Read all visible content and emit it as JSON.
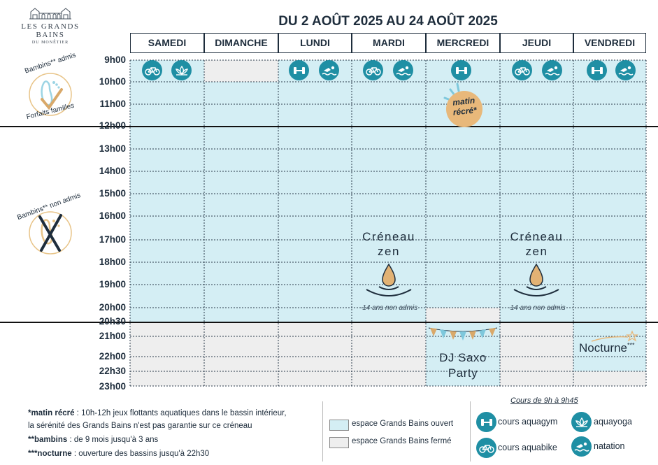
{
  "brand": {
    "name": "LES GRANDS BAINS",
    "subtitle": "DU MONÊTIER"
  },
  "title": "DU 2 AOÛT 2025 AU 24 AOÛT 2025",
  "days": [
    "SAMEDI",
    "DIMANCHE",
    "LUNDI",
    "MARDI",
    "MERCREDI",
    "JEUDI",
    "VENDREDI"
  ],
  "hours": [
    "9h00",
    "10h00",
    "11h00",
    "12h00",
    "13h00",
    "14h00",
    "15h00",
    "16h00",
    "17h00",
    "18h00",
    "19h00",
    "20h00",
    "20h30",
    "21h00",
    "22h00",
    "22h30",
    "23h00"
  ],
  "badges": {
    "top_arc": "Bambins** admis",
    "top_bottom_arc": "Forfaits familles",
    "bottom_arc": "Bambins** non admis"
  },
  "morning_icons": {
    "samedi": [
      "bike-icon",
      "lotus-icon"
    ],
    "lundi": [
      "dumbbell-icon",
      "swimmer-icon"
    ],
    "mardi": [
      "bike-icon",
      "swimmer-icon"
    ],
    "mercredi": [
      "dumbbell-icon"
    ],
    "jeudi": [
      "bike-icon",
      "swimmer-icon"
    ],
    "vendredi": [
      "dumbbell-icon",
      "swimmer-icon"
    ]
  },
  "matin_recre": {
    "line1": "matin",
    "line2": "récré*"
  },
  "creneau_zen": {
    "line1": "Créneau",
    "line2": "zen",
    "note": "-14 ans non admis"
  },
  "dj": {
    "line1": "DJ Saxo",
    "line2": "Party"
  },
  "nocturne": {
    "label": "Nocturne",
    "mark": "***"
  },
  "footnotes": [
    {
      "key": "*matin récré",
      "text": " : 10h-12h jeux flottants aquatiques dans le bassin intérieur,"
    },
    {
      "key": "",
      "text": "la sérénité des Grands Bains n'est pas garantie sur ce créneau"
    },
    {
      "key": "**bambins",
      "text": " : de 9 mois jusqu'à 3 ans"
    },
    {
      "key": "***nocturne",
      "text": " : ouverture des bassins jusqu'à 22h30"
    }
  ],
  "legend": {
    "open": "espace Grands Bains ouvert",
    "closed": "espace Grands Bains fermé",
    "courses_title": "Cours de 9h à 9h45",
    "aquagym": "cours aquagym",
    "aquayoga": "aquayoga",
    "aquabike": "cours aquabike",
    "natation": "natation"
  },
  "colors": {
    "open": "#d4eef4",
    "closed": "#eeeeee",
    "teal": "#1f8fa4",
    "gold": "#d9a96a"
  }
}
